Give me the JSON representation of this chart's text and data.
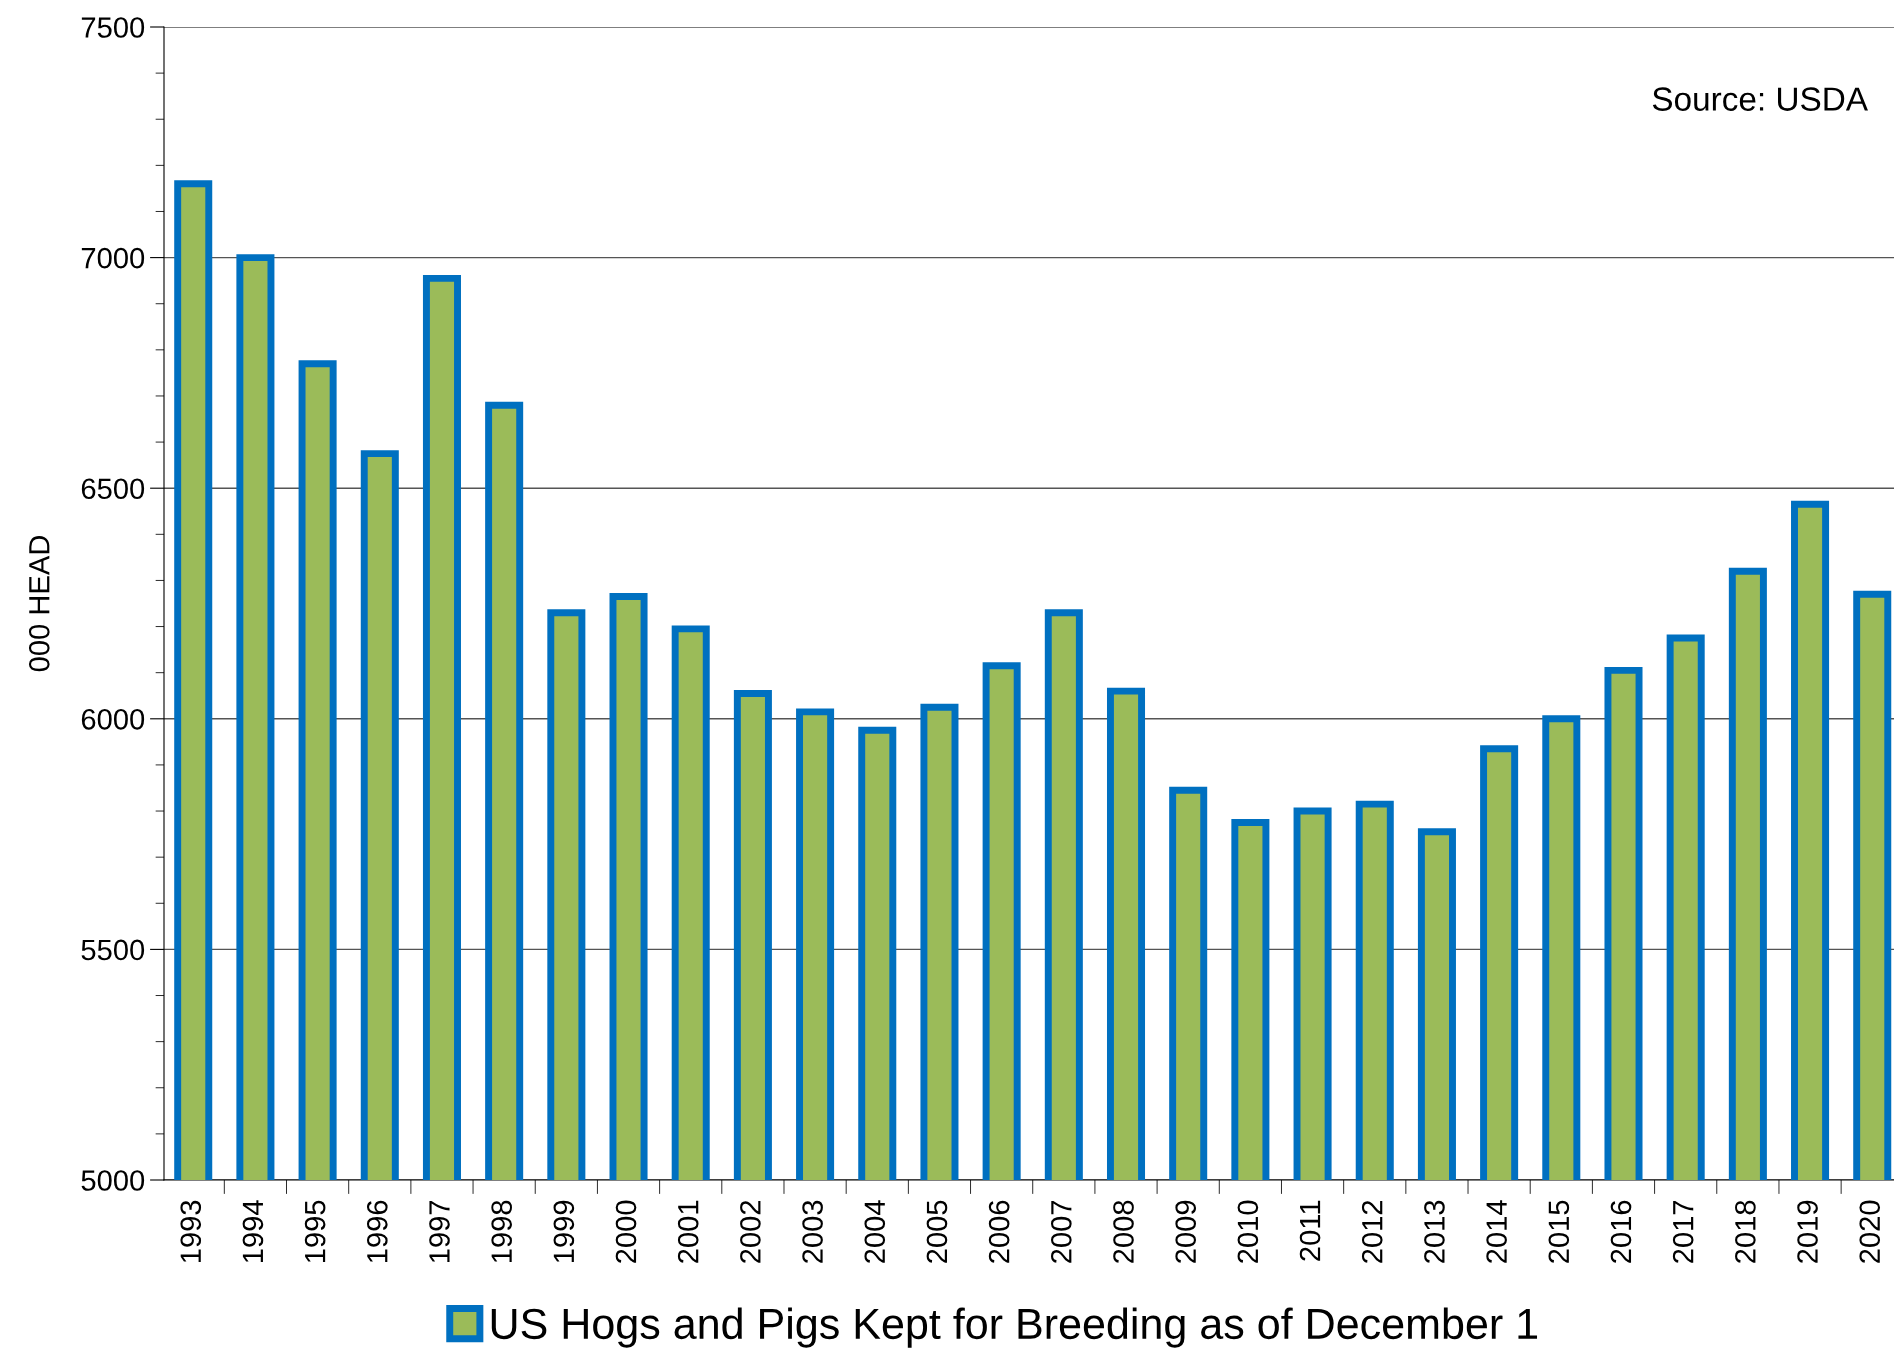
{
  "chart_data": {
    "type": "bar",
    "categories": [
      "1993",
      "1994",
      "1995",
      "1996",
      "1997",
      "1998",
      "1999",
      "2000",
      "2001",
      "2002",
      "2003",
      "2004",
      "2005",
      "2006",
      "2007",
      "2008",
      "2009",
      "2010",
      "2011",
      "2012",
      "2013",
      "2014",
      "2015",
      "2016",
      "2017",
      "2018",
      "2019",
      "2020"
    ],
    "series": [
      {
        "name": "US Hogs and Pigs Kept for Breeding as of December 1",
        "color": "#9bbb59",
        "values": [
          7160,
          7000,
          6770,
          6575,
          6955,
          6680,
          6230,
          6265,
          6195,
          6055,
          6015,
          5975,
          6025,
          6115,
          6230,
          6060,
          5845,
          5775,
          5800,
          5815,
          5755,
          5935,
          6000,
          6105,
          6175,
          6320,
          6465,
          6270
        ]
      }
    ],
    "ylabel": "000 HEAD",
    "ylim": [
      5000,
      7500
    ],
    "yticks": [
      5000,
      5500,
      6000,
      6500,
      7000,
      7500
    ],
    "grid": "y",
    "legend": "bottom",
    "annotations": [
      "Source: USDA"
    ]
  }
}
